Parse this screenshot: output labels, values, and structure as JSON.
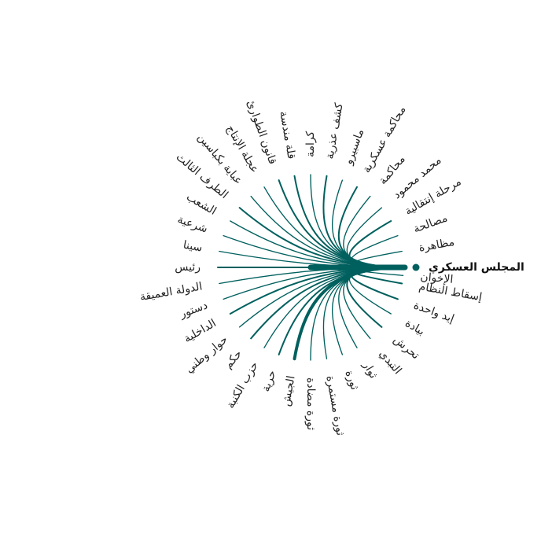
{
  "colors": {
    "edge": "#00605E",
    "hub_dot": "#00605E",
    "label": "#222222"
  },
  "hub": {
    "label": "المجلس العسكري",
    "angle_deg": 0
  },
  "terms": [
    {
      "label": "مظاهرة",
      "angle_deg": -10,
      "weight": 1
    },
    {
      "label": "مصالحة",
      "angle_deg": -20,
      "weight": 1
    },
    {
      "label": "مرحلة إنتقالية",
      "angle_deg": -30,
      "weight": 2
    },
    {
      "label": "محمد محمود",
      "angle_deg": -40,
      "weight": 1
    },
    {
      "label": "محاكمة",
      "angle_deg": -50,
      "weight": 1
    },
    {
      "label": "محاكمة عسكرية",
      "angle_deg": -60,
      "weight": 2
    },
    {
      "label": "ماسبيرو",
      "angle_deg": -70,
      "weight": 1
    },
    {
      "label": "كشف عذرية",
      "angle_deg": -80,
      "weight": 2
    },
    {
      "label": "كرامة",
      "angle_deg": -90,
      "weight": 1
    },
    {
      "label": "قلة مندسة",
      "angle_deg": -100,
      "weight": 2
    },
    {
      "label": "قانون الطوارئ",
      "angle_deg": -110,
      "weight": 2
    },
    {
      "label": "عجلة الإنتاج",
      "angle_deg": -120,
      "weight": 1
    },
    {
      "label": "عباية بكباسين",
      "angle_deg": -130,
      "weight": 1
    },
    {
      "label": "الطرف الثالث",
      "angle_deg": -140,
      "weight": 2
    },
    {
      "label": "الشعب",
      "angle_deg": -150,
      "weight": 1
    },
    {
      "label": "شرعية",
      "angle_deg": -160,
      "weight": 1
    },
    {
      "label": "سينا",
      "angle_deg": -170,
      "weight": 1
    },
    {
      "label": "رئيس",
      "angle_deg": 180,
      "weight": 2
    },
    {
      "label": "الدولة العميقة",
      "angle_deg": 170,
      "weight": 1
    },
    {
      "label": "دستور",
      "angle_deg": 160,
      "weight": 1
    },
    {
      "label": "الداخلية",
      "angle_deg": 150,
      "weight": 2
    },
    {
      "label": "حوار وطني",
      "angle_deg": 140,
      "weight": 1
    },
    {
      "label": "حكم",
      "angle_deg": 130,
      "weight": 2
    },
    {
      "label": "حزب الكنبة",
      "angle_deg": 120,
      "weight": 1
    },
    {
      "label": "حرية",
      "angle_deg": 110,
      "weight": 2
    },
    {
      "label": "الجيش",
      "angle_deg": 100,
      "weight": 5
    },
    {
      "label": "ثورة مضادة",
      "angle_deg": 90,
      "weight": 1
    },
    {
      "label": "ثورة مستمرة",
      "angle_deg": 80,
      "weight": 1
    },
    {
      "label": "ثورة",
      "angle_deg": 70,
      "weight": 1
    },
    {
      "label": "ثوار",
      "angle_deg": 60,
      "weight": 1
    },
    {
      "label": "التبدي",
      "angle_deg": 50,
      "weight": 1
    },
    {
      "label": "تحرش",
      "angle_deg": 40,
      "weight": 2
    },
    {
      "label": "بيادة",
      "angle_deg": 30,
      "weight": 1
    },
    {
      "label": "إيد واحدة",
      "angle_deg": 20,
      "weight": 2
    },
    {
      "label": "إسقاط النظام",
      "angle_deg": 10,
      "weight": 2
    },
    {
      "label": "الإخوان",
      "angle_deg": 5,
      "weight": 1
    }
  ]
}
